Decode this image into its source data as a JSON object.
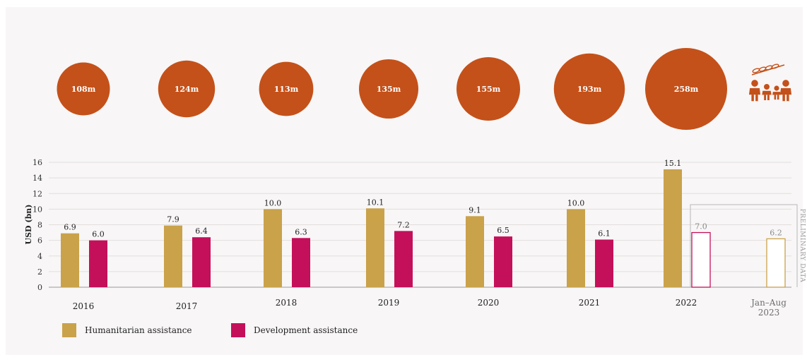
{
  "colors": {
    "humanitarian": "#c9a24a",
    "development": "#c4105a",
    "circle": "#c4511a",
    "axis_text": "#333333",
    "preliminary_box": "#b8b8b8"
  },
  "circles": [
    {
      "year": "2016",
      "label": "108m",
      "value": 108
    },
    {
      "year": "2017",
      "label": "124m",
      "value": 124
    },
    {
      "year": "2018",
      "label": "113m",
      "value": 113
    },
    {
      "year": "2019",
      "label": "135m",
      "value": 135
    },
    {
      "year": "2020",
      "label": "155m",
      "value": 155
    },
    {
      "year": "2021",
      "label": "193m",
      "value": 193
    },
    {
      "year": "2022",
      "label": "258m",
      "value": 258
    }
  ],
  "icon": "people-with-wheat-icon",
  "chart_data": {
    "type": "bar",
    "categories": [
      "2016",
      "2017",
      "2018",
      "2019",
      "2020",
      "2021",
      "2022",
      "Jan–Aug\n2023"
    ],
    "series": [
      {
        "name": "Humanitarian assistance",
        "values": [
          6.9,
          7.9,
          10.0,
          10.1,
          9.1,
          10.0,
          15.1,
          null
        ],
        "labels": [
          "6.9",
          "7.9",
          "10.0",
          "10.1",
          "9.1",
          "10.0",
          "15.1",
          ""
        ]
      },
      {
        "name": "Development assistance",
        "values": [
          6.0,
          6.4,
          6.3,
          7.2,
          6.5,
          6.1,
          7.0,
          null
        ],
        "labels": [
          "6.0",
          "6.4",
          "6.3",
          "7.2",
          "6.5",
          "6.1",
          "7.0",
          ""
        ]
      }
    ],
    "preliminary_values": [
      {
        "value": 6.2,
        "label": "6.2"
      }
    ],
    "ylabel": "USD (bn)",
    "ylim": [
      0,
      16
    ],
    "yticks": [
      0,
      2,
      4,
      6,
      8,
      10,
      12,
      14,
      16
    ],
    "preliminary_label": "PRELIMINARY DATA",
    "grid": true
  },
  "legend": {
    "humanitarian": "Humanitarian assistance",
    "development": "Development assistance"
  }
}
